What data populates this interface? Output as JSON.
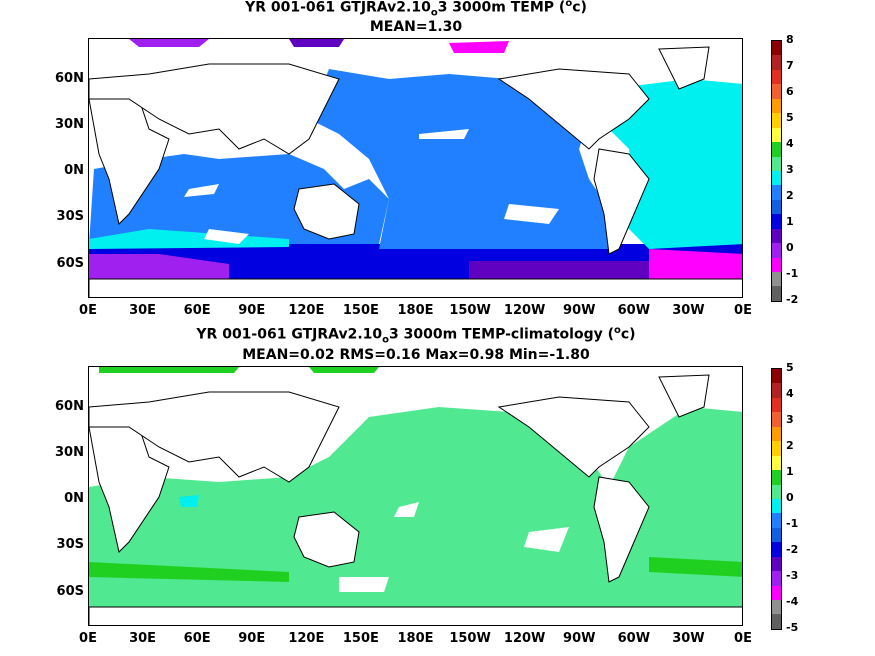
{
  "panels": [
    {
      "title_line1_a": "YR 001-061 GTJRAv2.10",
      "title_line1_sub": "o",
      "title_line1_b": "3 3000m TEMP (",
      "title_line1_sup": "o",
      "title_line1_c": "c)",
      "title_line2": "MEAN=1.30"
    },
    {
      "title_line1_a": "YR 001-061 GTJRAv2.10",
      "title_line1_sub": "o",
      "title_line1_b": "3 3000m TEMP-climatology (",
      "title_line1_sup": "o",
      "title_line1_c": "c)",
      "title_line2": "MEAN=0.02   RMS=0.16   Max=0.98   Min=-1.80"
    }
  ],
  "chart_data": [
    {
      "type": "heatmap",
      "xticks": [
        "0E",
        "30E",
        "60E",
        "90E",
        "120E",
        "150E",
        "180E",
        "150W",
        "120W",
        "90W",
        "60W",
        "30W",
        "0E"
      ],
      "yticks": [
        "60N",
        "30N",
        "0N",
        "30S",
        "60S"
      ],
      "colorbar_ticks": [
        "8",
        "7",
        "6",
        "5",
        "4",
        "3",
        "2",
        "1",
        "0",
        "-1",
        "-2"
      ],
      "colorbar_colors": [
        "#8b0000",
        "#b22222",
        "#e03020",
        "#f06030",
        "#ff9a00",
        "#ffd000",
        "#ffff40",
        "#20d020",
        "#50e890",
        "#00f0f0",
        "#2080ff",
        "#1060e0",
        "#0000e0",
        "#6000c0",
        "#a020f0",
        "#ff00ff",
        "#909090",
        "#606060"
      ]
    },
    {
      "type": "heatmap",
      "xticks": [
        "0E",
        "30E",
        "60E",
        "90E",
        "120E",
        "150E",
        "180E",
        "150W",
        "120W",
        "90W",
        "60W",
        "30W",
        "0E"
      ],
      "yticks": [
        "60N",
        "30N",
        "0N",
        "30S",
        "60S"
      ],
      "colorbar_ticks": [
        "5",
        "4",
        "3",
        "2",
        "1",
        "0",
        "-1",
        "-2",
        "-3",
        "-4",
        "-5"
      ],
      "colorbar_colors": [
        "#8b0000",
        "#b22222",
        "#e03020",
        "#f06030",
        "#ff9a00",
        "#ffd000",
        "#ffff40",
        "#20d020",
        "#50e890",
        "#00f0f0",
        "#2080ff",
        "#1060e0",
        "#0000e0",
        "#6000c0",
        "#a020f0",
        "#ff00ff",
        "#909090",
        "#606060"
      ]
    }
  ]
}
